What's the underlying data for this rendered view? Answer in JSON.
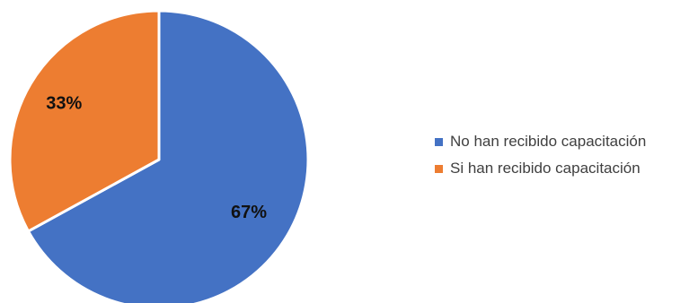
{
  "chart_data": {
    "type": "pie",
    "categories": [
      "No han recibido capacitación",
      "Si han recibido capacitación"
    ],
    "values": [
      67,
      33
    ],
    "labels": [
      "67%",
      "33%"
    ],
    "colors": [
      "#4472C4",
      "#ED7D31"
    ],
    "legend_position": "right"
  }
}
